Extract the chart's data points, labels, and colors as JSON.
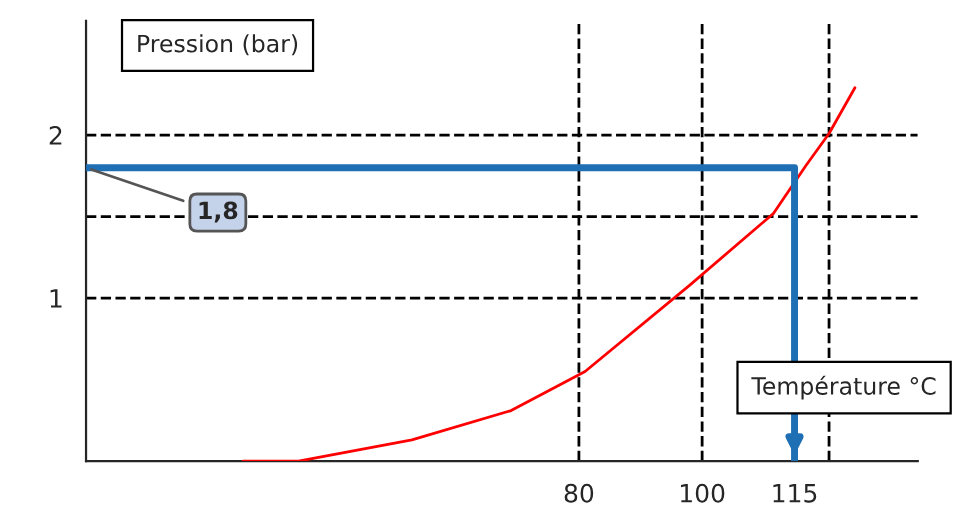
{
  "chart_data": {
    "type": "line",
    "xlabel": "Température °C",
    "ylabel": "Pression (bar)",
    "xlim": [
      0,
      135
    ],
    "ylim": [
      0,
      2.7
    ],
    "xticks": [
      80,
      100,
      115
    ],
    "yticks": [
      1,
      2
    ],
    "series": [
      {
        "color": "#ff0000",
        "x": [
          25.5,
          34.5,
          52.9,
          69,
          81,
          98,
          111.6,
          116.8,
          120.6,
          124.8
        ],
        "values": [
          0,
          0,
          0.13,
          0.31,
          0.55,
          1.08,
          1.52,
          1.81,
          2.01,
          2.29
        ]
      },
      {
        "color": "#1f6fb5",
        "x": [
          0,
          115,
          115
        ],
        "values": [
          1.8,
          1.8,
          0
        ]
      }
    ],
    "ref_lines": [
      {
        "axis": "y",
        "value": 2,
        "line_style": "dashed",
        "color": "#000000"
      },
      {
        "axis": "y",
        "value": 1.5,
        "line_style": "dashed",
        "color": "#000000"
      },
      {
        "axis": "y",
        "value": 1,
        "line_style": "dashed",
        "color": "#000000"
      },
      {
        "axis": "x",
        "value": 80,
        "line_style": "dashed",
        "color": "#000000"
      },
      {
        "axis": "x",
        "value": 100,
        "line_style": "dashed",
        "color": "#000000"
      },
      {
        "axis": "x",
        "value": 120.6,
        "line_style": "dashed",
        "color": "#000000"
      }
    ],
    "annotations": [
      {
        "text": "1,8",
        "x": 0,
        "y": 1.8
      }
    ],
    "grid": false,
    "legend": false,
    "marker": "none",
    "line_style": "solid"
  }
}
